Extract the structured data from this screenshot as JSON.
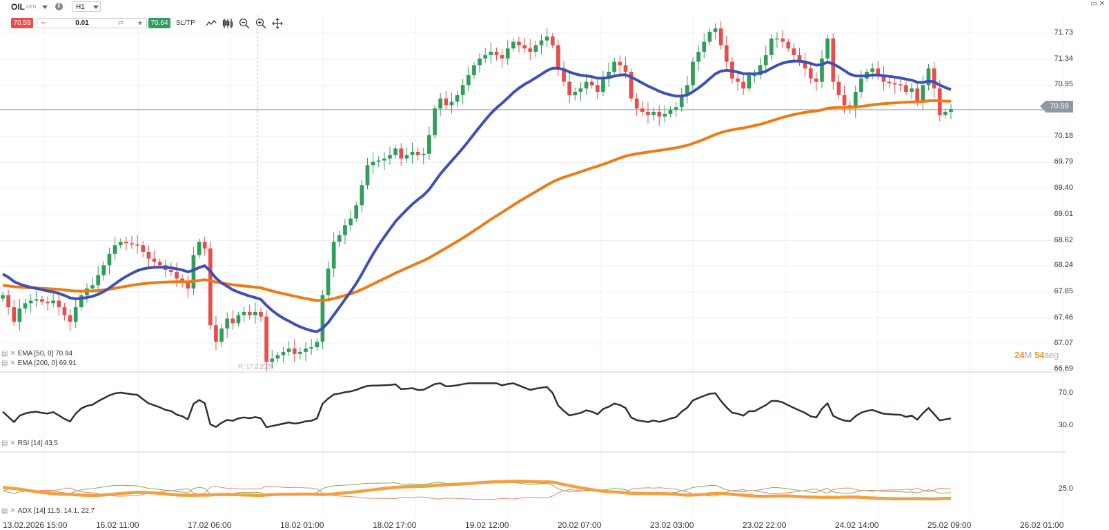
{
  "header": {
    "symbol": "OIL",
    "symbol_type": "CFD",
    "timeframe": "H1",
    "sell_price": "70.59",
    "buy_price": "70.64",
    "quantity": "0.01",
    "qty_minus": "−",
    "qty_plus": "+",
    "sltp_label": "SL/TP",
    "info_icon": "info-icon",
    "tools": [
      "line-chart-icon",
      "candles-icon",
      "zoom-out-icon",
      "zoom-in-icon",
      "crosshair-move-icon"
    ]
  },
  "price_axis": {
    "ticks": [
      "71.73",
      "71.34",
      "70.95",
      "70.59",
      "70.18",
      "69.79",
      "69.40",
      "69.01",
      "68.62",
      "68.24",
      "67.85",
      "67.46",
      "67.07",
      "66.69"
    ],
    "current_price": "70.59"
  },
  "rsi_axis": {
    "ticks": [
      "70.0",
      "30.0"
    ]
  },
  "adx_axis": {
    "ticks": [
      "25.0"
    ]
  },
  "time_axis": {
    "labels": [
      "13.02.2026 15:00",
      "16.02 11:00",
      "17.02 06:00",
      "18.02 01:00",
      "18.02 17:00",
      "19.02 12:00",
      "20.02 07:00",
      "23.02 03:00",
      "23.02 22:00",
      "24.02 14:00",
      "25.02 09:00",
      "26.02 01:00"
    ]
  },
  "legends": {
    "ema50": "EMA [50, 0] 70.94",
    "ema200": "EMA [200, 0] 69.91",
    "rsi": "RSI [14] 43.5",
    "adx": "ADX [14] 11.5, 14.1, 22.7"
  },
  "crosshair_label": "R: 17.2.2026",
  "countdown": {
    "minutes": "24",
    "minutes_unit": "M",
    "seconds": "54",
    "seconds_unit": "seg"
  },
  "colors": {
    "up": "#2f9e5b",
    "down": "#e84c4c",
    "ema50": "#3f4fb8",
    "ema200": "#f07a12",
    "rsi": "#2b2f36",
    "adx": "#f5a040",
    "plus_di": "#7fb04a",
    "minus_di": "#f08070"
  },
  "chart_data": [
    {
      "type": "candlestick",
      "title": "OIL",
      "timeframe": "H1",
      "y_ticks": [
        71.73,
        71.34,
        70.95,
        70.59,
        70.18,
        69.79,
        69.4,
        69.01,
        68.62,
        68.24,
        67.85,
        67.46,
        67.07,
        66.69
      ],
      "ylim": [
        66.69,
        71.73
      ],
      "closes": [
        67.8,
        67.62,
        67.4,
        67.6,
        67.68,
        67.72,
        67.74,
        67.7,
        67.68,
        67.72,
        67.62,
        67.5,
        67.4,
        67.62,
        67.8,
        67.9,
        67.95,
        68.1,
        68.25,
        68.42,
        68.55,
        68.6,
        68.58,
        68.56,
        68.55,
        68.45,
        68.35,
        68.3,
        68.25,
        68.18,
        68.15,
        68.05,
        68.0,
        67.9,
        68.4,
        68.6,
        68.5,
        67.35,
        67.1,
        67.3,
        67.45,
        67.38,
        67.5,
        67.55,
        67.5,
        67.55,
        67.48,
        66.8,
        66.85,
        66.9,
        66.95,
        67.0,
        66.92,
        66.95,
        67.0,
        67.02,
        67.1,
        67.8,
        68.2,
        68.6,
        68.7,
        68.85,
        68.95,
        69.15,
        69.45,
        69.75,
        69.8,
        69.82,
        69.85,
        69.9,
        70.0,
        69.85,
        69.9,
        69.95,
        69.9,
        69.92,
        70.2,
        70.6,
        70.75,
        70.65,
        70.7,
        70.8,
        70.95,
        71.1,
        71.25,
        71.35,
        71.4,
        71.45,
        71.4,
        71.35,
        71.5,
        71.6,
        71.55,
        71.5,
        71.45,
        71.55,
        71.62,
        71.68,
        71.55,
        71.2,
        71.0,
        70.8,
        70.85,
        70.9,
        71.0,
        70.95,
        70.85,
        71.05,
        71.15,
        71.3,
        71.25,
        71.15,
        70.75,
        70.6,
        70.55,
        70.5,
        70.55,
        70.48,
        70.52,
        70.58,
        70.62,
        70.8,
        70.95,
        71.3,
        71.45,
        71.6,
        71.75,
        71.8,
        71.55,
        71.3,
        71.05,
        71.0,
        70.9,
        71.1,
        71.1,
        71.25,
        71.4,
        71.65,
        71.65,
        71.6,
        71.5,
        71.4,
        71.3,
        71.2,
        71.05,
        71.0,
        71.35,
        71.65,
        71.0,
        70.8,
        70.65,
        70.6,
        70.85,
        71.05,
        71.15,
        71.2,
        71.1,
        71.0,
        70.98,
        70.96,
        70.95,
        70.85,
        70.9,
        70.7,
        70.95,
        71.2,
        70.9,
        70.5,
        70.55,
        70.59
      ],
      "ema": [
        {
          "name": "EMA [50, 0]",
          "last": 70.94
        },
        {
          "name": "EMA [200, 0]",
          "last": 69.91
        }
      ]
    },
    {
      "type": "line",
      "title": "RSI [14]",
      "last": 43.5,
      "y_ticks": [
        70.0,
        30.0
      ]
    },
    {
      "type": "line",
      "title": "ADX [14]",
      "values_last": [
        11.5,
        14.1,
        22.7
      ],
      "y_ticks": [
        25.0
      ]
    }
  ]
}
